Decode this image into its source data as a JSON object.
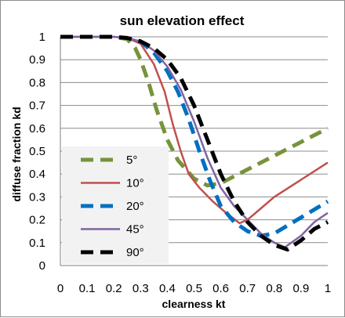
{
  "chart_data": {
    "type": "line",
    "title": "sun elevation effect",
    "xlabel": "clearness kt",
    "ylabel": "diffuse  fraction kd",
    "xlim": [
      0,
      1
    ],
    "ylim": [
      0,
      1
    ],
    "x_ticks": [
      "0",
      "0.1",
      "0.2",
      "0.3",
      "0.4",
      "0.5",
      "0.6",
      "0.7",
      "0.8",
      "0.9",
      "1"
    ],
    "y_ticks": [
      "0",
      "0.1",
      "0.2",
      "0.3",
      "0.4",
      "0.5",
      "0.6",
      "0.7",
      "0.8",
      "0.9",
      "1"
    ],
    "grid": "horizontal",
    "legend_position": "left",
    "series": [
      {
        "name": "5°",
        "color": "#77933C",
        "dash": "dashed",
        "points": [
          [
            0,
            1
          ],
          [
            0.1,
            1
          ],
          [
            0.2,
            1
          ],
          [
            0.25,
            0.99
          ],
          [
            0.28,
            0.95
          ],
          [
            0.3,
            0.9
          ],
          [
            0.33,
            0.8
          ],
          [
            0.36,
            0.68
          ],
          [
            0.4,
            0.55
          ],
          [
            0.44,
            0.46
          ],
          [
            0.5,
            0.38
          ],
          [
            0.55,
            0.35
          ],
          [
            0.6,
            0.36
          ],
          [
            0.65,
            0.39
          ],
          [
            0.7,
            0.42
          ],
          [
            0.8,
            0.48
          ],
          [
            0.9,
            0.54
          ],
          [
            1,
            0.6
          ]
        ]
      },
      {
        "name": "10°",
        "color": "#C0504D",
        "dash": "solid",
        "points": [
          [
            0,
            1
          ],
          [
            0.1,
            1
          ],
          [
            0.2,
            1
          ],
          [
            0.25,
            0.995
          ],
          [
            0.3,
            0.97
          ],
          [
            0.35,
            0.88
          ],
          [
            0.39,
            0.76
          ],
          [
            0.42,
            0.62
          ],
          [
            0.45,
            0.5
          ],
          [
            0.48,
            0.4
          ],
          [
            0.52,
            0.34
          ],
          [
            0.57,
            0.28
          ],
          [
            0.62,
            0.23
          ],
          [
            0.67,
            0.185
          ],
          [
            0.7,
            0.2
          ],
          [
            0.75,
            0.25
          ],
          [
            0.8,
            0.3
          ],
          [
            0.9,
            0.375
          ],
          [
            1,
            0.45
          ]
        ]
      },
      {
        "name": "20°",
        "color": "#0070C0",
        "dash": "dashed",
        "points": [
          [
            0,
            1
          ],
          [
            0.1,
            1
          ],
          [
            0.2,
            1
          ],
          [
            0.25,
            0.995
          ],
          [
            0.3,
            0.98
          ],
          [
            0.35,
            0.93
          ],
          [
            0.4,
            0.85
          ],
          [
            0.44,
            0.76
          ],
          [
            0.48,
            0.64
          ],
          [
            0.52,
            0.5
          ],
          [
            0.56,
            0.37
          ],
          [
            0.6,
            0.26
          ],
          [
            0.65,
            0.19
          ],
          [
            0.7,
            0.15
          ],
          [
            0.75,
            0.13
          ],
          [
            0.8,
            0.14
          ],
          [
            0.85,
            0.175
          ],
          [
            0.9,
            0.21
          ],
          [
            1,
            0.28
          ]
        ]
      },
      {
        "name": "45°",
        "color": "#8064A2",
        "dash": "solid",
        "points": [
          [
            0,
            1
          ],
          [
            0.1,
            1
          ],
          [
            0.2,
            1
          ],
          [
            0.25,
            0.995
          ],
          [
            0.3,
            0.98
          ],
          [
            0.35,
            0.94
          ],
          [
            0.4,
            0.87
          ],
          [
            0.45,
            0.77
          ],
          [
            0.5,
            0.63
          ],
          [
            0.55,
            0.47
          ],
          [
            0.6,
            0.34
          ],
          [
            0.65,
            0.26
          ],
          [
            0.7,
            0.2
          ],
          [
            0.75,
            0.14
          ],
          [
            0.8,
            0.1
          ],
          [
            0.84,
            0.08
          ],
          [
            0.9,
            0.13
          ],
          [
            0.95,
            0.19
          ],
          [
            1,
            0.23
          ]
        ]
      },
      {
        "name": "90°",
        "color": "#000000",
        "dash": "dashed",
        "points": [
          [
            0,
            1
          ],
          [
            0.1,
            1
          ],
          [
            0.2,
            1
          ],
          [
            0.25,
            0.995
          ],
          [
            0.3,
            0.98
          ],
          [
            0.35,
            0.95
          ],
          [
            0.4,
            0.9
          ],
          [
            0.45,
            0.82
          ],
          [
            0.5,
            0.7
          ],
          [
            0.55,
            0.55
          ],
          [
            0.6,
            0.4
          ],
          [
            0.65,
            0.28
          ],
          [
            0.7,
            0.19
          ],
          [
            0.75,
            0.13
          ],
          [
            0.8,
            0.09
          ],
          [
            0.85,
            0.07
          ],
          [
            0.9,
            0.11
          ],
          [
            0.95,
            0.16
          ],
          [
            1,
            0.19
          ]
        ]
      }
    ]
  }
}
